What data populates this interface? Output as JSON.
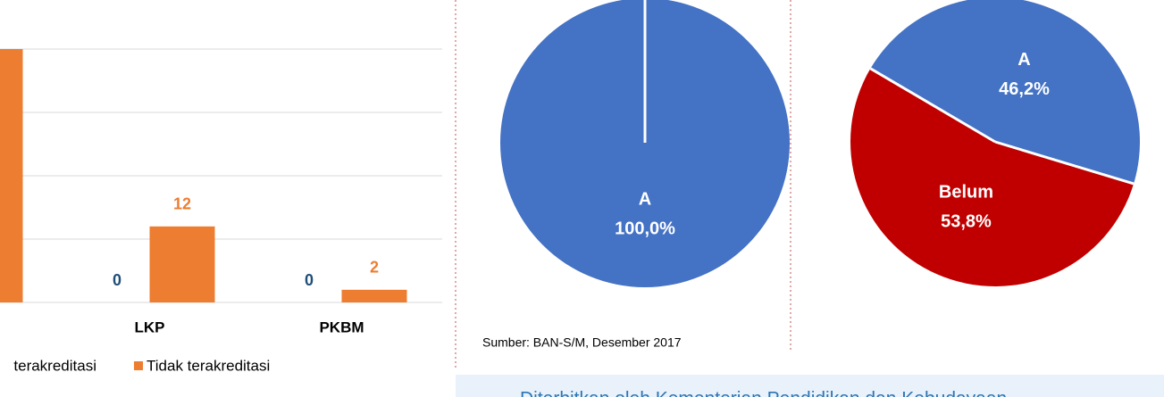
{
  "chart_data": [
    {
      "type": "bar",
      "categories": [
        null,
        "LKP",
        "PKBM"
      ],
      "series": [
        {
          "name": "terakreditasi",
          "color": "#4472c4",
          "label_color": "#1f4e79",
          "values": [
            null,
            0,
            0
          ]
        },
        {
          "name": "Tidak terakreditasi",
          "color": "#ed7d31",
          "label_color": "#ed7d31",
          "values": [
            40,
            12,
            2
          ]
        }
      ],
      "ylim": [
        0,
        40
      ],
      "yticks": [
        0,
        10,
        20,
        30,
        40
      ],
      "grid": true,
      "legend": "bottom"
    },
    {
      "type": "pie",
      "categories": [
        "A"
      ],
      "values": [
        100
      ],
      "value_labels": [
        "100,0%"
      ],
      "colors": [
        "#4472c4"
      ],
      "start_angle": 0
    },
    {
      "type": "pie",
      "categories": [
        "A",
        "Belum"
      ],
      "values": [
        46.2,
        53.8
      ],
      "value_labels": [
        "46,2%",
        "53,8%"
      ],
      "colors": [
        "#4472c4",
        "#c00000"
      ],
      "start_angle": -59.5
    }
  ],
  "source": "Sumber: BAN-S/M, Desember 2017",
  "footer": "Diterbitkan oleh Kementerian Pendidikan dan Kebudayaan"
}
